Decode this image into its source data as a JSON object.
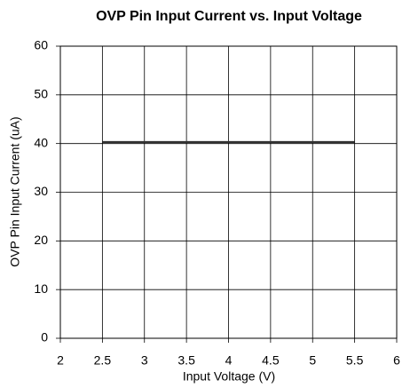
{
  "chart_data": {
    "type": "line",
    "title": "OVP Pin Input Current vs. Input Voltage",
    "xlabel": "Input Voltage (V)",
    "ylabel": "OVP Pin Input Current (uA)",
    "series": [
      {
        "color": "#333333",
        "x": [
          2.5,
          5.5
        ],
        "values": [
          40.3,
          40.3
        ]
      }
    ],
    "xlim": [
      2,
      6
    ],
    "xticks": [
      2,
      2.5,
      3,
      3.5,
      4,
      4.5,
      5,
      5.5,
      6
    ],
    "ylim": [
      0,
      60
    ],
    "yticks": [
      0,
      10,
      20,
      30,
      40,
      50,
      60
    ],
    "grid": true
  }
}
